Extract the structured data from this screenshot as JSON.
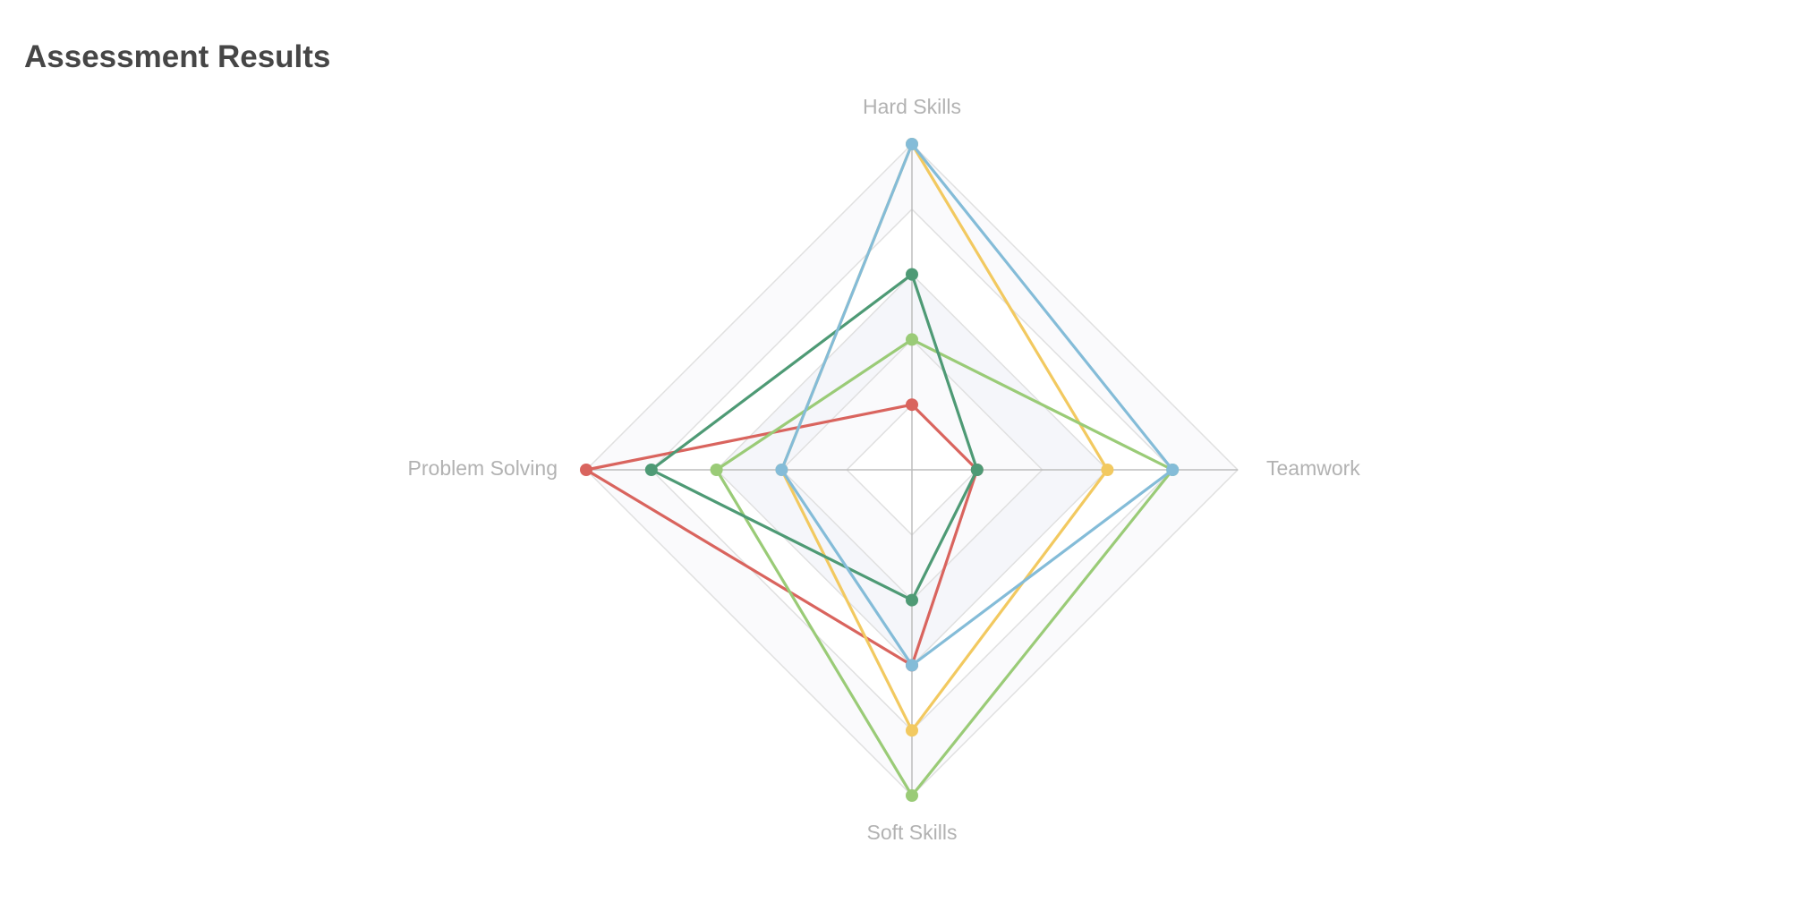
{
  "title": "Assessment Results",
  "chart_data": {
    "type": "radar",
    "title": "Assessment Results",
    "indicators": [
      "Hard Skills",
      "Teamwork",
      "Soft Skills",
      "Problem Solving"
    ],
    "max": 5,
    "split_number": 5,
    "split_area_colors": [
      "#ffffff",
      "#fafafc",
      "#f5f6fa"
    ],
    "grid_line_color": "#e0e0e0",
    "axis_line_color": "#bdbdbd",
    "series": [
      {
        "color": "#d9645e",
        "values": [
          1,
          1,
          3,
          5
        ]
      },
      {
        "color": "#f2c960",
        "values": [
          5,
          3,
          4,
          2
        ]
      },
      {
        "color": "#9acb77",
        "values": [
          2,
          4,
          5,
          3
        ]
      },
      {
        "color": "#4e9a75",
        "values": [
          3,
          1,
          2,
          4
        ]
      },
      {
        "color": "#84bcd8",
        "values": [
          5,
          4,
          3,
          2
        ]
      }
    ]
  }
}
